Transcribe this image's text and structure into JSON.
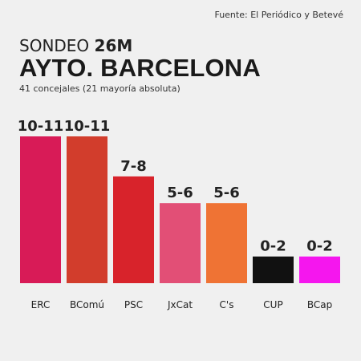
{
  "source": "Fuente: El Periódico y Betevé",
  "subtitle_prefix": "SONDEO ",
  "subtitle_strong": "26M",
  "title": "AYTO. BARCELONA",
  "note": "41 concejales (21 mayoría absoluta)",
  "chart_data": {
    "type": "bar",
    "title": "AYTO. BARCELONA",
    "xlabel": "",
    "ylabel": "",
    "ylim": [
      0,
      11
    ],
    "grid": false,
    "categories": [
      "ERC",
      "BComú",
      "PSC",
      "JxCat",
      "C's",
      "CUP",
      "BCap"
    ],
    "values": [
      11,
      11,
      8,
      6,
      6,
      2,
      2
    ],
    "value_labels": [
      "10-11",
      "10-11",
      "7-8",
      "5-6",
      "5-6",
      "0-2",
      "0-2"
    ],
    "colors": [
      "#d81b57",
      "#d23d2c",
      "#d8232b",
      "#e24f76",
      "#ef7334",
      "#111111",
      "#f516ee"
    ]
  }
}
